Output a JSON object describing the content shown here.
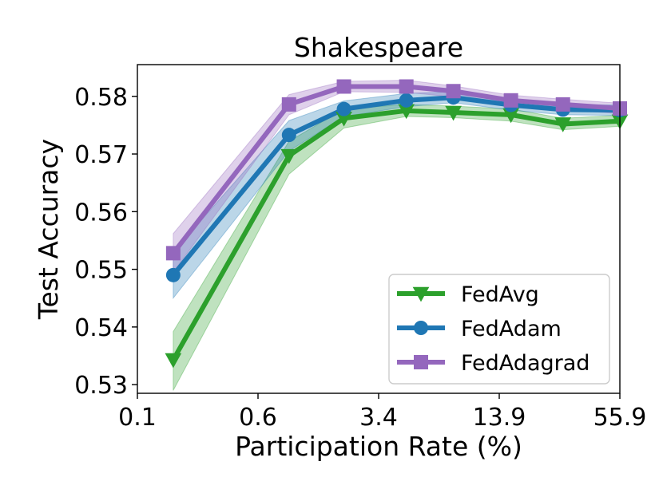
{
  "chart_data": {
    "type": "line",
    "title": "Shakespeare",
    "xlabel": "Participation Rate (%)",
    "ylabel": "Test Accuracy",
    "x_scale": "log",
    "x_ticks": [
      "0.1",
      "0.6",
      "3.4",
      "13.9",
      "55.9"
    ],
    "y_ticks": [
      "0.53",
      "0.54",
      "0.55",
      "0.56",
      "0.57",
      "0.58"
    ],
    "ylim": [
      0.5285,
      0.5855
    ],
    "xlim": [
      0.1,
      55.9
    ],
    "grid": false,
    "legend_position": "bottom-right",
    "x": [
      0.16,
      0.73,
      1.5,
      3.4,
      6.3,
      13.4,
      26.5,
      55.9
    ],
    "series": [
      {
        "name": "FedAvg",
        "color": "#2ca02c",
        "marker": "triangle-down",
        "values": [
          0.5343,
          0.5697,
          0.5762,
          0.5775,
          0.5772,
          0.5768,
          0.5752,
          0.5757
        ],
        "lower": [
          0.529,
          0.5665,
          0.5745,
          0.5765,
          0.5763,
          0.5757,
          0.5742,
          0.5748
        ],
        "upper": [
          0.5392,
          0.5722,
          0.5778,
          0.5786,
          0.5783,
          0.5778,
          0.5762,
          0.5767
        ]
      },
      {
        "name": "FedAdam",
        "color": "#1f77b4",
        "marker": "circle",
        "values": [
          0.549,
          0.5733,
          0.5778,
          0.5793,
          0.5798,
          0.5785,
          0.5777,
          0.5776
        ],
        "lower": [
          0.545,
          0.5705,
          0.5765,
          0.5782,
          0.5789,
          0.5776,
          0.5768,
          0.5767
        ],
        "upper": [
          0.553,
          0.5758,
          0.5792,
          0.5805,
          0.5808,
          0.5795,
          0.5786,
          0.5785
        ]
      },
      {
        "name": "FedAdagrad",
        "color": "#9467bd",
        "marker": "square",
        "values": [
          0.5528,
          0.5786,
          0.5817,
          0.5817,
          0.5809,
          0.5793,
          0.5786,
          0.5779
        ],
        "lower": [
          0.5495,
          0.5768,
          0.5808,
          0.5807,
          0.5799,
          0.5784,
          0.5777,
          0.577
        ],
        "upper": [
          0.5562,
          0.5803,
          0.5826,
          0.5828,
          0.5818,
          0.5802,
          0.5795,
          0.5788
        ]
      }
    ]
  }
}
